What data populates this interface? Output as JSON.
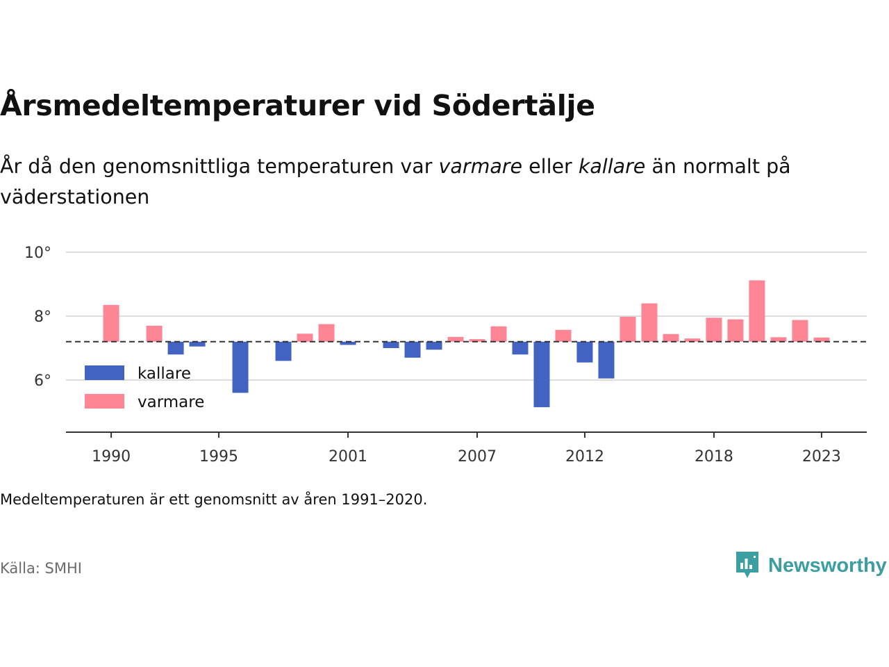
{
  "title": "Årsmedeltemperaturer vid Södertälje",
  "subtitle": {
    "part1": "År då den genomsnittliga temperaturen var ",
    "warm_word": "varmare",
    "part2": " eller ",
    "cold_word": "kallare",
    "part3": " än normalt på väderstationen"
  },
  "note": "Medeltemperaturen är ett genomsnitt av åren 1991–2020.",
  "source": "Källa: SMHI",
  "brand": {
    "name": "Newsworthy",
    "icon": "newsworthy-chart-logo-icon",
    "color": "#3b9ea0"
  },
  "chart_data": {
    "type": "bar",
    "baseline": 7.2,
    "ylim": [
      4.3,
      10
    ],
    "y_ticks": [
      {
        "value": 10,
        "label": "10°"
      },
      {
        "value": 8,
        "label": "8°"
      },
      {
        "value": 6,
        "label": "6°"
      }
    ],
    "x_ticks": [
      1990,
      1995,
      2001,
      2007,
      2012,
      2018,
      2023
    ],
    "xlim": [
      1987.9,
      2025.1
    ],
    "grid": true,
    "legend_position": "bottom-left",
    "colors": {
      "kallare": "#4263c2",
      "varmare": "#fe8594",
      "baseline": "#333333"
    },
    "series": [
      {
        "name": "kallare",
        "years": [
          1993,
          1994,
          1996,
          1998,
          2001,
          2003,
          2004,
          2005,
          2009,
          2010,
          2012,
          2013
        ],
        "values": [
          6.8,
          7.05,
          5.6,
          6.6,
          7.1,
          7.0,
          6.7,
          6.95,
          6.8,
          5.15,
          6.55,
          6.05
        ]
      },
      {
        "name": "varmare",
        "years": [
          1990,
          1992,
          1999,
          2000,
          2006,
          2007,
          2008,
          2011,
          2014,
          2015,
          2016,
          2017,
          2018,
          2019,
          2020,
          2021,
          2022,
          2023
        ],
        "values": [
          8.35,
          7.7,
          7.45,
          7.75,
          7.35,
          7.28,
          7.68,
          7.57,
          7.98,
          8.4,
          7.44,
          7.3,
          7.95,
          7.9,
          9.12,
          7.34,
          7.88,
          7.33
        ]
      }
    ]
  }
}
